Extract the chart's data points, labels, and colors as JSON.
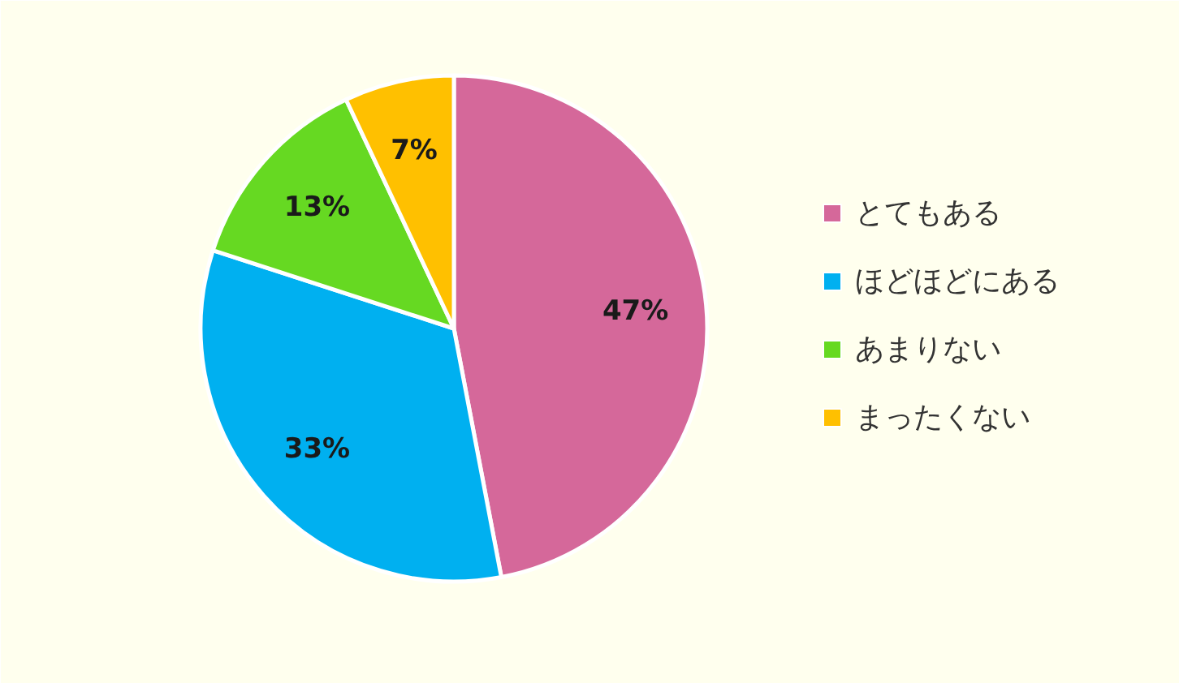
{
  "chart_data": {
    "type": "pie",
    "categories": [
      "とてもある",
      "ほどほどにある",
      "あまりない",
      "まったくない"
    ],
    "values": [
      47,
      33,
      13,
      7
    ],
    "colors": [
      "#d5689a",
      "#00b0f0",
      "#66d922",
      "#ffc000"
    ],
    "value_labels": [
      "47%",
      "33%",
      "13%",
      "7%"
    ],
    "legend": "right"
  }
}
